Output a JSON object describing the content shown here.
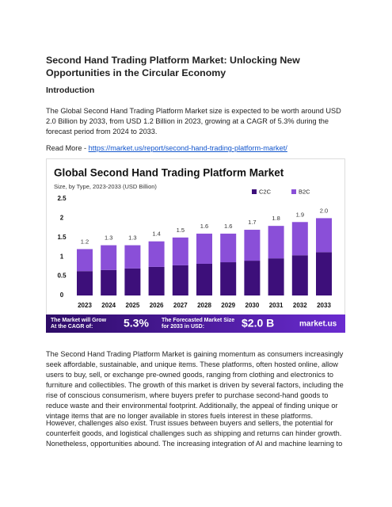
{
  "document": {
    "title": "Second Hand Trading Platform Market: Unlocking New Opportunities in the Circular Economy",
    "heading": "Introduction",
    "paragraph_1": "The Global Second Hand Trading Platform Market size is expected to be worth around USD 2.0 Billion by 2033, from USD 1.2 Billion in 2023, growing at a CAGR of 5.3% during the forecast period from 2024 to 2033.",
    "read_more": "Read More - ",
    "link": "https://market.us/report/second-hand-trading-platform-market/",
    "paragraph_2": "The Second Hand Trading Platform Market is gaining momentum as consumers increasingly seek affordable, sustainable, and unique items. These platforms, often hosted online, allow users to buy, sell, or exchange pre-owned goods, ranging from clothing and electronics to furniture and collectibles. The growth of this market is driven by several factors, including the rise of conscious consumerism, where buyers prefer to purchase second-hand goods to reduce waste and their environmental footprint. Additionally, the appeal of finding unique or vintage items that are no longer available in stores fuels interest in these platforms.",
    "paragraph_3": "However, challenges also exist. Trust issues between buyers and sellers, the potential for counterfeit goods, and logistical challenges such as shipping and returns can hinder growth. Nonetheless, opportunities abound. The increasing integration of AI and machine learning to"
  },
  "chart_data": {
    "type": "bar",
    "stacked": true,
    "title": "Global Second Hand Trading Platform Market",
    "subtitle": "Size, by Type, 2023-2033 (USD Billion)",
    "categories": [
      "2023",
      "2024",
      "2025",
      "2026",
      "2027",
      "2028",
      "2029",
      "2030",
      "2031",
      "2032",
      "2033"
    ],
    "series": [
      {
        "name": "C2C",
        "color": "#3d0f7a",
        "values": [
          0.63,
          0.66,
          0.7,
          0.74,
          0.78,
          0.82,
          0.86,
          0.9,
          0.96,
          1.04,
          1.12
        ]
      },
      {
        "name": "B2C",
        "color": "#8a4fd8",
        "values": [
          0.57,
          0.64,
          0.6,
          0.66,
          0.72,
          0.78,
          0.74,
          0.8,
          0.84,
          0.86,
          0.88
        ]
      }
    ],
    "totals": {
      "values": [
        1.2,
        1.3,
        1.3,
        1.4,
        1.5,
        1.6,
        1.6,
        1.7,
        1.8,
        1.9,
        2
      ],
      "value_labels": [
        "1.2",
        "1.3",
        "1.3",
        "1.4",
        "1.5",
        "1.6",
        "1.6",
        "1.7",
        "1.8",
        "1.9",
        "2.0"
      ]
    },
    "ylim": [
      0,
      2.5
    ],
    "yticks": [
      0,
      0.5,
      1,
      1.5,
      2,
      2.5
    ],
    "banner": {
      "cagr_text": "The Market will Grow At the CAGR of:",
      "cagr": "5.3%",
      "size_text": "The Forecasted Market Size for 2033 in USD:",
      "size": "$2.0 B",
      "brand": "market.us"
    }
  }
}
